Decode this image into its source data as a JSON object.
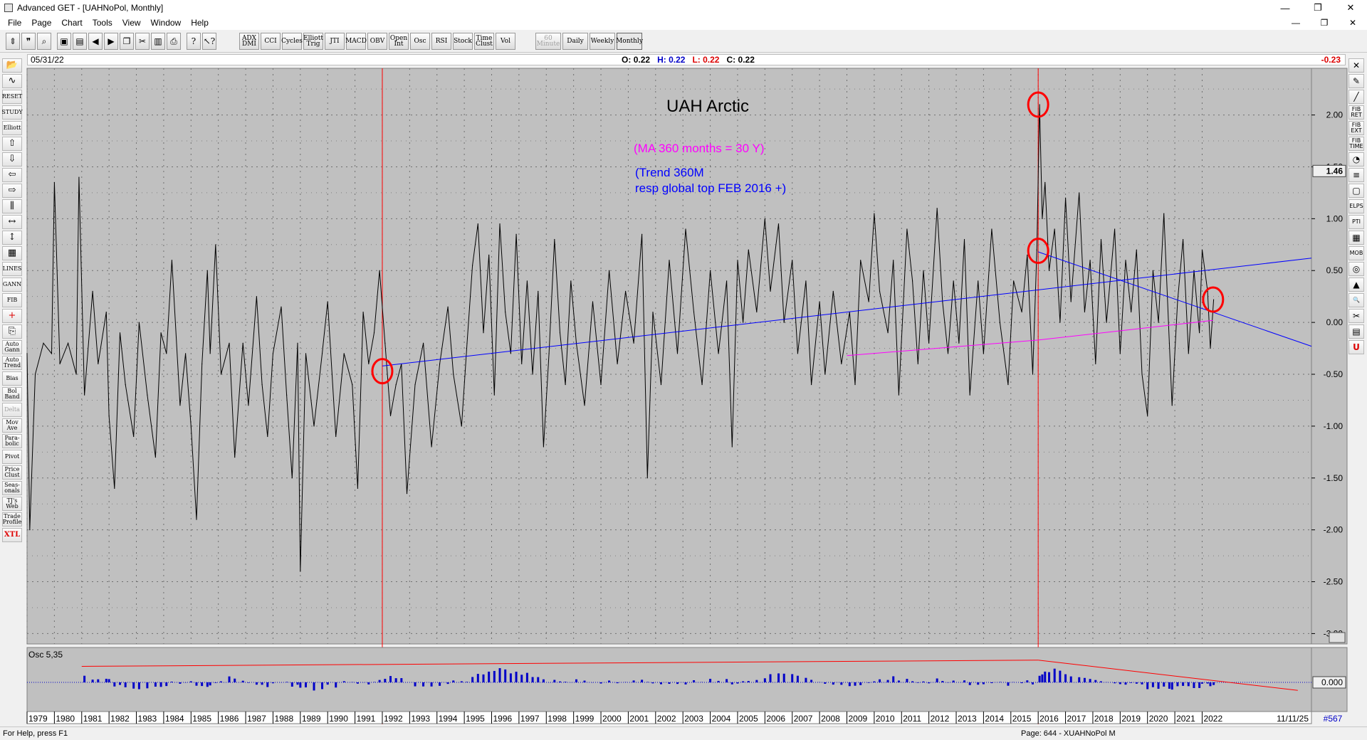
{
  "window": {
    "title": "Advanced GET - [UAHNoPol, Monthly]",
    "controls": [
      "—",
      "❐",
      "✕"
    ]
  },
  "menu": [
    "File",
    "Page",
    "Chart",
    "Tools",
    "View",
    "Window",
    "Help"
  ],
  "doc_controls": [
    "—",
    "❐",
    "✕"
  ],
  "toolbar": {
    "icon_buttons": [
      "pointer-icon",
      "quote-icon",
      "magnify-icon",
      "print-icon",
      "save-icon",
      "back-icon",
      "forward-icon",
      "copy-icon",
      "cut-icon",
      "paste-icon",
      "print2-icon",
      "help-icon",
      "context-help-icon"
    ],
    "study_buttons": [
      {
        "label": "ADX DMI"
      },
      {
        "label": "CCI"
      },
      {
        "label": "Cycles"
      },
      {
        "label": "Elliott Trig"
      },
      {
        "label": "JTI"
      },
      {
        "label": "MACD"
      },
      {
        "label": "OBV"
      },
      {
        "label": "Open Int"
      },
      {
        "label": "Osc"
      },
      {
        "label": "RSI"
      },
      {
        "label": "Stock"
      },
      {
        "label": "Time Clust"
      },
      {
        "label": "Vol"
      }
    ],
    "period_buttons": [
      {
        "label": "60 Minute",
        "state": "disabled"
      },
      {
        "label": "Daily",
        "state": "normal"
      },
      {
        "label": "Weekly",
        "state": "normal"
      },
      {
        "label": "Monthly",
        "state": "active"
      }
    ]
  },
  "left_tools": [
    {
      "label": "",
      "icon": "open-folder-icon"
    },
    {
      "label": "",
      "icon": "cycle-icon"
    },
    {
      "label": "RESET",
      "icon": "reset-icon"
    },
    {
      "label": "STUDY",
      "icon": "study-icon"
    },
    {
      "label": "Elliott",
      "icon": "elliott-icon"
    },
    {
      "label": "",
      "icon": "arrow-up-icon"
    },
    {
      "label": "",
      "icon": "arrow-down-icon"
    },
    {
      "label": "",
      "icon": "arrow-left-icon"
    },
    {
      "label": "",
      "icon": "arrow-right-icon"
    },
    {
      "label": "",
      "icon": "bars-icon"
    },
    {
      "label": "",
      "icon": "expand-h-icon"
    },
    {
      "label": "",
      "icon": "expand-v-icon"
    },
    {
      "label": "",
      "icon": "grid-icon"
    },
    {
      "label": "LINES",
      "icon": "lines-icon"
    },
    {
      "label": "GANN",
      "icon": "gann-icon"
    },
    {
      "label": "FIB",
      "icon": "fib-icon"
    },
    {
      "label": "",
      "icon": "crosshair-icon"
    },
    {
      "label": "",
      "icon": "export-icon"
    },
    {
      "label": "Auto Gann",
      "icon": ""
    },
    {
      "label": "Auto Trend",
      "icon": ""
    },
    {
      "label": "Bias",
      "icon": ""
    },
    {
      "label": "Bol Band",
      "icon": ""
    },
    {
      "label": "Delta",
      "icon": "",
      "state": "disabled"
    },
    {
      "label": "Mov Ave",
      "icon": ""
    },
    {
      "label": "Para-bolic",
      "icon": ""
    },
    {
      "label": "Pivot",
      "icon": ""
    },
    {
      "label": "Price Clust",
      "icon": ""
    },
    {
      "label": "Seas-onals",
      "icon": ""
    },
    {
      "label": "TJ's Web",
      "icon": ""
    },
    {
      "label": "Trade Profile",
      "icon": ""
    },
    {
      "label": "XTL",
      "icon": "",
      "state": "red"
    }
  ],
  "right_tools": [
    {
      "label": "✕",
      "icon": "close-tool-icon"
    },
    {
      "label": "✎",
      "icon": "pencil-icon"
    },
    {
      "label": "╱",
      "icon": "trendline-icon"
    },
    {
      "label": "FIB RET",
      "icon": "fib-ret-icon"
    },
    {
      "label": "FIB EXT",
      "icon": "fib-ext-icon"
    },
    {
      "label": "FIB TIME",
      "icon": "fib-time-icon"
    },
    {
      "label": "◔",
      "icon": "arc-icon"
    },
    {
      "label": "≡",
      "icon": "channel-icon"
    },
    {
      "label": "▢",
      "icon": "rectangle-icon"
    },
    {
      "label": "ELPS",
      "icon": "ellipse-icon"
    },
    {
      "label": "PTI",
      "icon": "pti-icon"
    },
    {
      "label": "▦",
      "icon": "grid-tool-icon"
    },
    {
      "label": "MOB",
      "icon": "mob-icon"
    },
    {
      "label": "◎",
      "icon": "target-icon"
    },
    {
      "label": "▲",
      "icon": "triangle-icon"
    },
    {
      "label": "🔍",
      "icon": "zoom-icon"
    },
    {
      "label": "✂",
      "icon": "erase-icon"
    },
    {
      "label": "▤",
      "icon": "list-icon"
    },
    {
      "label": "U",
      "icon": "u-icon"
    }
  ],
  "infobar": {
    "date": "05/31/22",
    "open_label": "O:",
    "open": "0.22",
    "high_label": "H:",
    "high": "0.22",
    "low_label": "L:",
    "low": "0.22",
    "close_label": "C:",
    "close": "0.22",
    "last_value": "-0.23"
  },
  "chart_data": {
    "type": "line",
    "title": "UAH Arctic",
    "annotations": [
      {
        "text": "(MA 360 months = 30 Y)",
        "color": "#ff00ff"
      },
      {
        "text": "(Trend 360M",
        "color": "#0000ff"
      },
      {
        "text": "resp global top FEB 2016 +)",
        "color": "#0000ff"
      }
    ],
    "ylim": [
      -3.1,
      2.45
    ],
    "y_ticks": [
      "2.00",
      "1.50",
      "1.00",
      "0.50",
      "0.00",
      "-0.50",
      "-1.00",
      "-1.50",
      "-2.00",
      "-2.50",
      "-3.00"
    ],
    "y_tick_values": [
      2.0,
      1.5,
      1.0,
      0.5,
      0.0,
      -0.5,
      -1.0,
      -1.5,
      -2.0,
      -2.5,
      -3.0
    ],
    "current_value_label": "1.46",
    "x_labels": [
      "1979",
      "1980",
      "1981",
      "1982",
      "1983",
      "1984",
      "1985",
      "1986",
      "1987",
      "1988",
      "1989",
      "1990",
      "1991",
      "1992",
      "1993",
      "1994",
      "1995",
      "1996",
      "1997",
      "1998",
      "1999",
      "2000",
      "2001",
      "2002",
      "2003",
      "2004",
      "2005",
      "2006",
      "2007",
      "2008",
      "2009",
      "2010",
      "2011",
      "2012",
      "2013",
      "2014",
      "2015",
      "2016",
      "2017",
      "2018",
      "2019",
      "2020",
      "2021",
      "2022"
    ],
    "x_range": [
      1979.0,
      2026.0
    ],
    "end_date_label": "11/11/25",
    "bar_count_label": "#567",
    "series_color": "#000000",
    "anchors": [
      [
        1979.0,
        -0.3
      ],
      [
        1979.1,
        -2.0
      ],
      [
        1979.3,
        -0.5
      ],
      [
        1979.6,
        -0.2
      ],
      [
        1979.9,
        -0.3
      ],
      [
        1980.0,
        1.35
      ],
      [
        1980.2,
        -0.4
      ],
      [
        1980.5,
        -0.2
      ],
      [
        1980.8,
        -0.5
      ],
      [
        1980.9,
        1.4
      ],
      [
        1981.1,
        -0.7
      ],
      [
        1981.4,
        0.3
      ],
      [
        1981.6,
        -0.4
      ],
      [
        1981.9,
        0.1
      ],
      [
        1982.0,
        -0.9
      ],
      [
        1982.2,
        -1.6
      ],
      [
        1982.4,
        -0.1
      ],
      [
        1982.6,
        -0.6
      ],
      [
        1982.9,
        -1.1
      ],
      [
        1983.1,
        0.0
      ],
      [
        1983.4,
        -0.7
      ],
      [
        1983.7,
        -1.3
      ],
      [
        1983.9,
        -0.1
      ],
      [
        1984.1,
        -0.3
      ],
      [
        1984.3,
        0.6
      ],
      [
        1984.6,
        -0.8
      ],
      [
        1984.8,
        -0.3
      ],
      [
        1985.0,
        -1.0
      ],
      [
        1985.2,
        -1.9
      ],
      [
        1985.4,
        -0.4
      ],
      [
        1985.6,
        0.5
      ],
      [
        1985.7,
        -0.3
      ],
      [
        1985.9,
        0.75
      ],
      [
        1986.1,
        -0.5
      ],
      [
        1986.4,
        -0.2
      ],
      [
        1986.6,
        -1.3
      ],
      [
        1986.9,
        -0.2
      ],
      [
        1987.1,
        -0.8
      ],
      [
        1987.4,
        0.25
      ],
      [
        1987.6,
        -0.6
      ],
      [
        1987.8,
        -1.1
      ],
      [
        1988.0,
        -0.3
      ],
      [
        1988.3,
        0.15
      ],
      [
        1988.5,
        -0.7
      ],
      [
        1988.7,
        -1.5
      ],
      [
        1988.9,
        -0.2
      ],
      [
        1989.0,
        -2.4
      ],
      [
        1989.2,
        -0.3
      ],
      [
        1989.5,
        -1.0
      ],
      [
        1989.8,
        -0.3
      ],
      [
        1990.0,
        0.2
      ],
      [
        1990.3,
        -1.1
      ],
      [
        1990.6,
        -0.3
      ],
      [
        1990.9,
        -0.6
      ],
      [
        1991.1,
        -1.6
      ],
      [
        1991.3,
        0.1
      ],
      [
        1991.5,
        -0.4
      ],
      [
        1991.7,
        -0.1
      ],
      [
        1991.9,
        0.5
      ],
      [
        1992.1,
        -0.2
      ],
      [
        1992.3,
        -0.9
      ],
      [
        1992.5,
        -0.6
      ],
      [
        1992.7,
        -0.4
      ],
      [
        1992.9,
        -1.65
      ],
      [
        1993.2,
        -0.6
      ],
      [
        1993.5,
        -0.2
      ],
      [
        1993.8,
        -1.2
      ],
      [
        1994.1,
        -0.4
      ],
      [
        1994.4,
        0.15
      ],
      [
        1994.6,
        -0.5
      ],
      [
        1994.9,
        -1.0
      ],
      [
        1995.1,
        -0.2
      ],
      [
        1995.3,
        0.55
      ],
      [
        1995.5,
        0.95
      ],
      [
        1995.7,
        -0.1
      ],
      [
        1995.9,
        0.65
      ],
      [
        1996.1,
        -0.7
      ],
      [
        1996.3,
        0.95
      ],
      [
        1996.5,
        0.1
      ],
      [
        1996.7,
        -0.3
      ],
      [
        1996.9,
        0.85
      ],
      [
        1997.1,
        -0.4
      ],
      [
        1997.3,
        0.4
      ],
      [
        1997.5,
        -0.5
      ],
      [
        1997.7,
        0.3
      ],
      [
        1997.9,
        -1.2
      ],
      [
        1998.1,
        -0.3
      ],
      [
        1998.3,
        0.8
      ],
      [
        1998.5,
        -0.1
      ],
      [
        1998.7,
        -0.6
      ],
      [
        1998.9,
        0.4
      ],
      [
        1999.1,
        -0.2
      ],
      [
        1999.4,
        -0.8
      ],
      [
        1999.7,
        0.2
      ],
      [
        2000.0,
        -0.6
      ],
      [
        2000.3,
        0.5
      ],
      [
        2000.6,
        -0.4
      ],
      [
        2000.9,
        0.3
      ],
      [
        2001.2,
        -0.2
      ],
      [
        2001.5,
        0.85
      ],
      [
        2001.7,
        -1.5
      ],
      [
        2001.9,
        0.1
      ],
      [
        2002.2,
        -0.6
      ],
      [
        2002.5,
        0.6
      ],
      [
        2002.8,
        -0.3
      ],
      [
        2003.1,
        0.9
      ],
      [
        2003.4,
        0.1
      ],
      [
        2003.7,
        -0.6
      ],
      [
        2004.0,
        0.5
      ],
      [
        2004.3,
        -0.3
      ],
      [
        2004.6,
        0.4
      ],
      [
        2004.8,
        -1.2
      ],
      [
        2005.0,
        0.6
      ],
      [
        2005.2,
        0.0
      ],
      [
        2005.4,
        0.7
      ],
      [
        2005.7,
        0.1
      ],
      [
        2006.0,
        1.0
      ],
      [
        2006.2,
        0.3
      ],
      [
        2006.5,
        0.95
      ],
      [
        2006.7,
        0.0
      ],
      [
        2007.0,
        0.6
      ],
      [
        2007.2,
        -0.3
      ],
      [
        2007.5,
        0.4
      ],
      [
        2007.7,
        -0.6
      ],
      [
        2008.0,
        0.2
      ],
      [
        2008.2,
        -0.5
      ],
      [
        2008.5,
        0.3
      ],
      [
        2008.8,
        -0.4
      ],
      [
        2009.1,
        0.1
      ],
      [
        2009.3,
        -0.6
      ],
      [
        2009.5,
        0.6
      ],
      [
        2009.8,
        0.2
      ],
      [
        2010.0,
        1.05
      ],
      [
        2010.2,
        0.3
      ],
      [
        2010.5,
        -0.1
      ],
      [
        2010.7,
        0.6
      ],
      [
        2010.9,
        -0.7
      ],
      [
        2011.2,
        0.9
      ],
      [
        2011.4,
        0.4
      ],
      [
        2011.6,
        -0.4
      ],
      [
        2011.8,
        0.5
      ],
      [
        2012.0,
        -0.2
      ],
      [
        2012.3,
        1.1
      ],
      [
        2012.5,
        0.2
      ],
      [
        2012.7,
        -0.3
      ],
      [
        2012.9,
        0.4
      ],
      [
        2013.1,
        -0.2
      ],
      [
        2013.3,
        0.8
      ],
      [
        2013.5,
        -0.7
      ],
      [
        2013.8,
        0.4
      ],
      [
        2014.0,
        -0.3
      ],
      [
        2014.3,
        0.9
      ],
      [
        2014.6,
        0.0
      ],
      [
        2014.9,
        -0.6
      ],
      [
        2015.1,
        0.4
      ],
      [
        2015.4,
        0.1
      ],
      [
        2015.6,
        0.65
      ],
      [
        2015.8,
        -0.5
      ],
      [
        2015.95,
        0.7
      ],
      [
        2016.05,
        2.1
      ],
      [
        2016.15,
        1.0
      ],
      [
        2016.25,
        1.35
      ],
      [
        2016.4,
        0.5
      ],
      [
        2016.6,
        0.9
      ],
      [
        2016.8,
        0.0
      ],
      [
        2017.0,
        1.2
      ],
      [
        2017.2,
        0.2
      ],
      [
        2017.5,
        1.25
      ],
      [
        2017.7,
        0.1
      ],
      [
        2017.9,
        0.6
      ],
      [
        2018.1,
        -0.4
      ],
      [
        2018.3,
        0.8
      ],
      [
        2018.5,
        0.0
      ],
      [
        2018.8,
        0.9
      ],
      [
        2019.0,
        -0.3
      ],
      [
        2019.2,
        0.6
      ],
      [
        2019.4,
        0.1
      ],
      [
        2019.6,
        0.7
      ],
      [
        2019.8,
        -0.5
      ],
      [
        2020.0,
        -0.9
      ],
      [
        2020.2,
        0.5
      ],
      [
        2020.4,
        0.0
      ],
      [
        2020.6,
        1.05
      ],
      [
        2020.8,
        -0.2
      ],
      [
        2020.9,
        -0.8
      ],
      [
        2021.1,
        0.2
      ],
      [
        2021.3,
        0.8
      ],
      [
        2021.5,
        -0.3
      ],
      [
        2021.7,
        0.5
      ],
      [
        2021.9,
        -0.1
      ],
      [
        2022.0,
        0.7
      ],
      [
        2022.2,
        0.3
      ],
      [
        2022.3,
        -0.25
      ],
      [
        2022.42,
        0.22
      ]
    ],
    "trend_line": {
      "x": [
        1992.0,
        2026.0
      ],
      "y": [
        -0.42,
        0.62
      ],
      "color": "#0000ff"
    },
    "trend_line_2": {
      "x": [
        2016.0,
        2026.0
      ],
      "y": [
        0.68,
        -0.23
      ],
      "color": "#0000ff"
    },
    "moving_average": {
      "x": [
        2009.0,
        2016.0,
        2022.4
      ],
      "y": [
        -0.32,
        -0.17,
        0.02
      ],
      "color": "#ff00ff"
    },
    "vertical_markers": [
      {
        "x": 1992.0,
        "color": "#ff0000"
      },
      {
        "x": 2016.0,
        "color": "#ff0000"
      }
    ],
    "circles": [
      {
        "x": 1992.0,
        "y": -0.47
      },
      {
        "x": 2016.0,
        "y": 2.1
      },
      {
        "x": 2016.0,
        "y": 0.69
      },
      {
        "x": 2022.4,
        "y": 0.22
      }
    ],
    "oscillator": {
      "label": "Osc 5,35",
      "zero_label": "0.000",
      "color": "#0000c8",
      "lines": [
        {
          "x": [
            1981.0,
            2016.0
          ],
          "y": [
            0.9,
            1.25
          ],
          "color": "#ff0000"
        },
        {
          "x": [
            2016.0,
            2025.5
          ],
          "y": [
            1.25,
            -0.45
          ],
          "color": "#ff0000"
        }
      ]
    }
  },
  "status": {
    "help": "For Help, press F1",
    "page": "Page: 644 - XUAHNoPol M"
  }
}
